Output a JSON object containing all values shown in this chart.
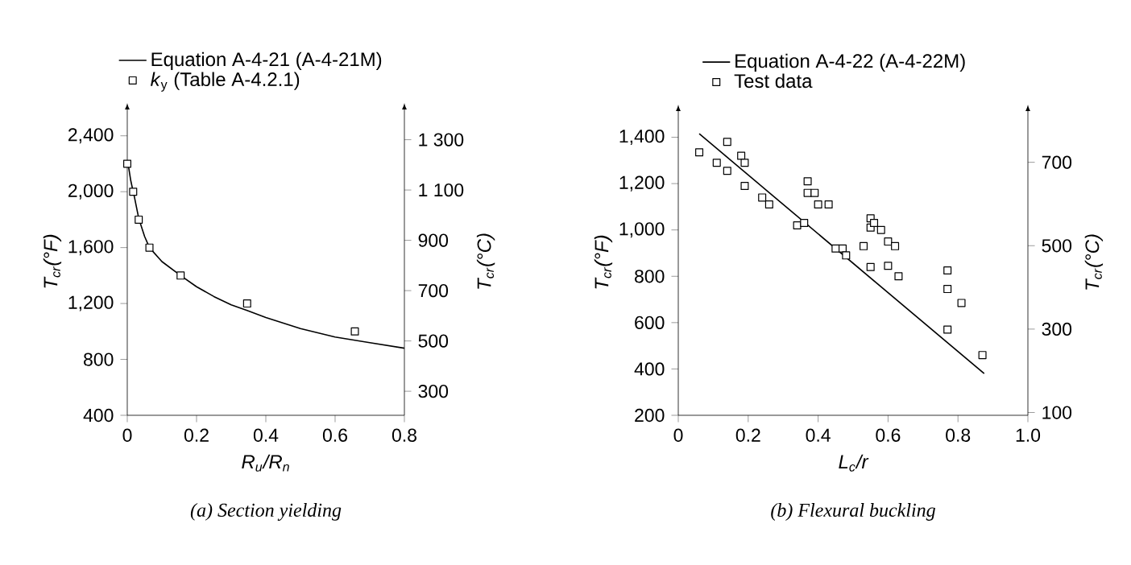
{
  "chart_data": [
    {
      "type": "line",
      "xlabel": "*R*$_{u}$/*R*$_{n}$",
      "ylabel": "*T*$_{cr}$(°*F*)",
      "y2label": "*T*$_{cr}$(°*C*)",
      "annotations": [
        "(a) Section yielding"
      ],
      "legend": "top",
      "xlim": [
        0,
        0.8
      ],
      "xticks": [
        0,
        0.2,
        0.4,
        0.6,
        0.8
      ],
      "ylim": [
        400,
        2600
      ],
      "yticks": [
        {
          "value": 400,
          "label": "400"
        },
        {
          "value": 800,
          "label": "800"
        },
        {
          "value": 1200,
          "label": "1,200"
        },
        {
          "value": 1600,
          "label": "1,600"
        },
        {
          "value": 2000,
          "label": "2,000"
        },
        {
          "value": 2400,
          "label": "2,400"
        }
      ],
      "y2lim": [
        204.4,
        1426.7
      ],
      "y2ticks": [
        300,
        500,
        700,
        900,
        {
          "value": 1100,
          "label": "1 100"
        },
        {
          "value": 1300,
          "label": "1 300"
        }
      ],
      "series": [
        {
          "name": "Equation A-4-21 (A-4-21M)",
          "type": "line",
          "color": "#000000",
          "marker": "none",
          "line_style": "solid",
          "x": [
            0.003,
            0.01,
            0.017,
            0.02,
            0.033,
            0.05,
            0.064,
            0.1,
            0.154,
            0.2,
            0.25,
            0.3,
            0.346,
            0.4,
            0.5,
            0.6,
            0.7,
            0.8
          ],
          "values": [
            2190,
            2080,
            2000,
            1970,
            1810,
            1680,
            1600,
            1500,
            1400,
            1320,
            1250,
            1190,
            1150,
            1100,
            1020,
            960,
            920,
            880
          ]
        },
        {
          "name": "*k*$_{y}$ (Table A-4.2.1)",
          "type": "scatter",
          "color": "#000000",
          "marker": "square",
          "x": [
            0,
            0.017,
            0.033,
            0.064,
            0.154,
            0.346,
            0.657
          ],
          "values": [
            2200,
            2000,
            1800,
            1600,
            1400,
            1200,
            1000
          ]
        }
      ]
    },
    {
      "type": "line",
      "xlabel": "*L*$_{c}$/*r*",
      "ylabel": "*T*$_{cr}$(°*F*)",
      "y2label": "*T*$_{cr}$(°*C*)",
      "annotations": [
        "(b) Flexural buckling"
      ],
      "legend": "top",
      "xlim": [
        0,
        1.0
      ],
      "xticks": [
        0,
        0.2,
        0.4,
        0.6,
        0.8,
        {
          "value": 1.0,
          "label": "1.0"
        }
      ],
      "ylim": [
        200,
        1520
      ],
      "yticks": [
        {
          "value": 200,
          "label": "200"
        },
        {
          "value": 400,
          "label": "400"
        },
        {
          "value": 600,
          "label": "600"
        },
        {
          "value": 800,
          "label": "800"
        },
        {
          "value": 1000,
          "label": "1,000"
        },
        {
          "value": 1200,
          "label": "1,200"
        },
        {
          "value": 1400,
          "label": "1,400"
        }
      ],
      "y2lim": [
        93.3,
        826.7
      ],
      "y2ticks": [
        100,
        300,
        500,
        700
      ],
      "series": [
        {
          "name": "Equation A-4-22 (A-4-22M)",
          "type": "line",
          "color": "#000000",
          "marker": "none",
          "line_style": "solid",
          "x": [
            0.06,
            0.875
          ],
          "values": [
            1415,
            380
          ]
        },
        {
          "name": "Test data",
          "type": "scatter",
          "color": "#000000",
          "marker": "square",
          "x": [
            0.06,
            0.11,
            0.14,
            0.14,
            0.18,
            0.19,
            0.19,
            0.24,
            0.26,
            0.34,
            0.36,
            0.37,
            0.37,
            0.39,
            0.4,
            0.43,
            0.45,
            0.47,
            0.48,
            0.53,
            0.55,
            0.55,
            0.55,
            0.56,
            0.58,
            0.6,
            0.6,
            0.62,
            0.63,
            0.77,
            0.77,
            0.77,
            0.81,
            0.87
          ],
          "values": [
            1335,
            1290,
            1380,
            1255,
            1320,
            1290,
            1190,
            1140,
            1110,
            1020,
            1030,
            1210,
            1160,
            1160,
            1110,
            1110,
            920,
            920,
            890,
            930,
            840,
            1050,
            1010,
            1030,
            1000,
            950,
            845,
            930,
            800,
            745,
            825,
            570,
            685,
            460
          ]
        }
      ]
    }
  ]
}
